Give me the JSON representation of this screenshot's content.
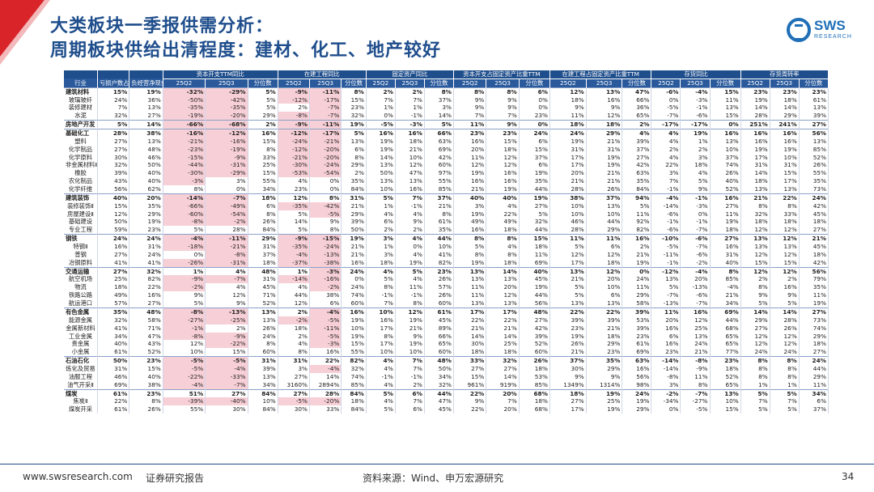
{
  "title": {
    "line1": "大类板块一季报供需分析：",
    "line2": "周期板块供给出清程度：建材、化工、地产较好"
  },
  "logo": {
    "brand": "SWS",
    "sub": "RESEARCH"
  },
  "table": {
    "groups": [
      "",
      "",
      "",
      "资本开支TTM同比",
      "在建工程同比",
      "固定资产同比",
      "资本开支占固定资产比重TTM",
      "在建工程占固定资产比重TTM",
      "存货同比",
      "存货周转率"
    ],
    "headers": [
      "行业",
      "亏损户数占比",
      "负经营净现金流户数占比",
      "25Q2",
      "25Q3",
      "分位数",
      "25Q2",
      "25Q3",
      "分位数",
      "25Q2",
      "25Q3",
      "分位数",
      "25Q2",
      "25Q3",
      "分位数",
      "25Q2",
      "25Q3",
      "分位数",
      "25Q2",
      "25Q3",
      "分位数",
      "25Q2",
      "25Q3",
      "分位数"
    ],
    "rows": [
      {
        "t": "m",
        "c": [
          "建筑材料",
          "15%",
          "19%",
          "-32%",
          "-29%",
          "5%",
          "-9%",
          "-11%",
          "8%",
          "2%",
          "2%",
          "8%",
          "8%",
          "8%",
          "6%",
          "12%",
          "13%",
          "47%",
          "-6%",
          "-4%",
          "15%",
          "23%",
          "23%",
          "23%"
        ]
      },
      {
        "t": "s",
        "c": [
          "玻璃玻纤",
          "24%",
          "36%",
          "-50%",
          "-42%",
          "5%",
          "-12%",
          "-17%",
          "15%",
          "7%",
          "7%",
          "37%",
          "9%",
          "9%",
          "0%",
          "18%",
          "16%",
          "66%",
          "0%",
          "-3%",
          "11%",
          "19%",
          "18%",
          "61%"
        ]
      },
      {
        "t": "s",
        "c": [
          "装修建材",
          "7%",
          "13%",
          "-35%",
          "-35%",
          "5%",
          "2%",
          "-7%",
          "23%",
          "1%",
          "1%",
          "3%",
          "9%",
          "9%",
          "0%",
          "9%",
          "9%",
          "36%",
          "-5%",
          "-1%",
          "13%",
          "14%",
          "14%",
          "13%"
        ]
      },
      {
        "t": "s",
        "c": [
          "水泥",
          "32%",
          "27%",
          "-19%",
          "-20%",
          "29%",
          "-8%",
          "-7%",
          "32%",
          "0%",
          "-1%",
          "14%",
          "7%",
          "7%",
          "23%",
          "11%",
          "12%",
          "65%",
          "-7%",
          "-6%",
          "15%",
          "28%",
          "29%",
          "39%"
        ]
      },
      {
        "t": "m",
        "c": [
          "房地产开发",
          "5%",
          "14%",
          "-66%",
          "-68%",
          "2%",
          "-9%",
          "-11%",
          "19%",
          "-5%",
          "-3%",
          "5%",
          "11%",
          "9%",
          "0%",
          "18%",
          "18%",
          "2%",
          "-17%",
          "-17%",
          "0%",
          "251%",
          "241%",
          "27%"
        ]
      },
      {
        "t": "m",
        "c": [
          "基础化工",
          "28%",
          "38%",
          "-16%",
          "-12%",
          "16%",
          "-12%",
          "-17%",
          "5%",
          "16%",
          "16%",
          "66%",
          "23%",
          "23%",
          "24%",
          "24%",
          "29%",
          "4%",
          "4%",
          "19%",
          "16%",
          "16%",
          "16%",
          "56%"
        ]
      },
      {
        "t": "s",
        "c": [
          "塑料",
          "27%",
          "13%",
          "-21%",
          "-16%",
          "15%",
          "-24%",
          "-21%",
          "13%",
          "19%",
          "18%",
          "63%",
          "16%",
          "15%",
          "6%",
          "19%",
          "21%",
          "39%",
          "4%",
          "1%",
          "13%",
          "16%",
          "16%",
          "13%"
        ]
      },
      {
        "t": "s",
        "c": [
          "化学制品",
          "27%",
          "48%",
          "-23%",
          "-19%",
          "8%",
          "-12%",
          "-20%",
          "6%",
          "19%",
          "21%",
          "69%",
          "20%",
          "18%",
          "15%",
          "31%",
          "31%",
          "37%",
          "2%",
          "2%",
          "10%",
          "19%",
          "19%",
          "85%"
        ]
      },
      {
        "t": "s",
        "c": [
          "化学原料",
          "30%",
          "46%",
          "-15%",
          "-9%",
          "33%",
          "-21%",
          "-20%",
          "8%",
          "14%",
          "10%",
          "42%",
          "11%",
          "12%",
          "37%",
          "17%",
          "19%",
          "27%",
          "4%",
          "3%",
          "37%",
          "17%",
          "10%",
          "52%"
        ]
      },
      {
        "t": "s",
        "c": [
          "非金属材料Ⅱ",
          "32%",
          "50%",
          "-44%",
          "-31%",
          "25%",
          "-30%",
          "-24%",
          "29%",
          "13%",
          "12%",
          "60%",
          "12%",
          "12%",
          "6%",
          "17%",
          "19%",
          "42%",
          "22%",
          "18%",
          "74%",
          "31%",
          "31%",
          "26%"
        ]
      },
      {
        "t": "s",
        "c": [
          "橡胶",
          "39%",
          "40%",
          "-30%",
          "-29%",
          "15%",
          "-53%",
          "-54%",
          "2%",
          "50%",
          "47%",
          "97%",
          "19%",
          "16%",
          "19%",
          "20%",
          "21%",
          "63%",
          "3%",
          "4%",
          "26%",
          "14%",
          "15%",
          "55%"
        ]
      },
      {
        "t": "s",
        "c": [
          "农化制品",
          "43%",
          "40%",
          "-3%",
          "3%",
          "55%",
          "4%",
          "0%",
          "35%",
          "13%",
          "13%",
          "55%",
          "16%",
          "16%",
          "35%",
          "21%",
          "21%",
          "35%",
          "7%",
          "5%",
          "40%",
          "18%",
          "17%",
          "35%"
        ]
      },
      {
        "t": "s",
        "c": [
          "化学纤维",
          "56%",
          "62%",
          "8%",
          "0%",
          "34%",
          "23%",
          "0%",
          "84%",
          "10%",
          "16%",
          "85%",
          "21%",
          "19%",
          "44%",
          "28%",
          "26%",
          "84%",
          "-1%",
          "9%",
          "52%",
          "13%",
          "13%",
          "73%"
        ]
      },
      {
        "t": "m",
        "c": [
          "建筑装饰",
          "40%",
          "20%",
          "-14%",
          "-7%",
          "18%",
          "12%",
          "8%",
          "31%",
          "5%",
          "7%",
          "37%",
          "40%",
          "40%",
          "19%",
          "38%",
          "37%",
          "94%",
          "-4%",
          "-1%",
          "16%",
          "21%",
          "22%",
          "24%"
        ]
      },
      {
        "t": "s",
        "c": [
          "装修装饰Ⅱ",
          "15%",
          "35%",
          "-66%",
          "-49%",
          "6%",
          "-35%",
          "-42%",
          "21%",
          "1%",
          "-1%",
          "21%",
          "3%",
          "4%",
          "27%",
          "10%",
          "13%",
          "5%",
          "-14%",
          "-3%",
          "27%",
          "8%",
          "8%",
          "42%"
        ]
      },
      {
        "t": "s",
        "c": [
          "房屋建设Ⅱ",
          "12%",
          "29%",
          "-60%",
          "-54%",
          "8%",
          "5%",
          "-5%",
          "29%",
          "4%",
          "4%",
          "8%",
          "19%",
          "22%",
          "5%",
          "10%",
          "10%",
          "11%",
          "-6%",
          "0%",
          "11%",
          "32%",
          "33%",
          "45%"
        ]
      },
      {
        "t": "s",
        "c": [
          "基础建设",
          "50%",
          "19%",
          "-8%",
          "-2%",
          "26%",
          "14%",
          "9%",
          "39%",
          "6%",
          "9%",
          "61%",
          "49%",
          "49%",
          "32%",
          "46%",
          "44%",
          "92%",
          "-1%",
          "-1%",
          "19%",
          "18%",
          "18%",
          "18%"
        ]
      },
      {
        "t": "s",
        "c": [
          "专业工程",
          "59%",
          "23%",
          "5%",
          "28%",
          "84%",
          "5%",
          "8%",
          "50%",
          "2%",
          "2%",
          "35%",
          "16%",
          "18%",
          "44%",
          "28%",
          "29%",
          "82%",
          "-6%",
          "-7%",
          "18%",
          "12%",
          "12%",
          "27%"
        ]
      },
      {
        "t": "m",
        "c": [
          "钢铁",
          "24%",
          "24%",
          "-4%",
          "-11%",
          "29%",
          "-9%",
          "-15%",
          "19%",
          "3%",
          "4%",
          "44%",
          "8%",
          "8%",
          "15%",
          "11%",
          "11%",
          "16%",
          "-10%",
          "-6%",
          "27%",
          "13%",
          "12%",
          "21%"
        ]
      },
      {
        "t": "s",
        "c": [
          "特钢Ⅱ",
          "16%",
          "31%",
          "-18%",
          "-21%",
          "31%",
          "-35%",
          "-24%",
          "21%",
          "1%",
          "0%",
          "10%",
          "5%",
          "4%",
          "18%",
          "5%",
          "6%",
          "2%",
          "-5%",
          "-7%",
          "16%",
          "13%",
          "13%",
          "45%"
        ]
      },
      {
        "t": "s",
        "c": [
          "普钢",
          "27%",
          "24%",
          "0%",
          "-8%",
          "37%",
          "-4%",
          "-13%",
          "21%",
          "3%",
          "4%",
          "41%",
          "8%",
          "8%",
          "11%",
          "12%",
          "12%",
          "21%",
          "-11%",
          "-6%",
          "31%",
          "12%",
          "12%",
          "18%"
        ]
      },
      {
        "t": "s",
        "c": [
          "冶钢原料",
          "41%",
          "41%",
          "-26%",
          "-31%",
          "18%",
          "-37%",
          "-38%",
          "16%",
          "18%",
          "19%",
          "82%",
          "19%",
          "18%",
          "69%",
          "17%",
          "18%",
          "19%",
          "-1%",
          "-2%",
          "40%",
          "15%",
          "15%",
          "42%"
        ]
      },
      {
        "t": "m",
        "c": [
          "交通运输",
          "27%",
          "32%",
          "1%",
          "4%",
          "48%",
          "1%",
          "-3%",
          "24%",
          "4%",
          "5%",
          "23%",
          "13%",
          "14%",
          "40%",
          "13%",
          "12%",
          "0%",
          "-12%",
          "-4%",
          "8%",
          "12%",
          "12%",
          "56%"
        ]
      },
      {
        "t": "s",
        "c": [
          "航空机场",
          "25%",
          "82%",
          "-9%",
          "-7%",
          "31%",
          "-14%",
          "-16%",
          "0%",
          "5%",
          "4%",
          "26%",
          "13%",
          "13%",
          "45%",
          "21%",
          "20%",
          "24%",
          "13%",
          "20%",
          "85%",
          "2%",
          "2%",
          "79%"
        ]
      },
      {
        "t": "s",
        "c": [
          "物流",
          "18%",
          "22%",
          "-2%",
          "4%",
          "45%",
          "4%",
          "-2%",
          "24%",
          "8%",
          "11%",
          "57%",
          "11%",
          "20%",
          "19%",
          "5%",
          "10%",
          "11%",
          "5%",
          "-13%",
          "-4%",
          "8%",
          "16%",
          "35%"
        ]
      },
      {
        "t": "s",
        "c": [
          "铁路公路",
          "49%",
          "16%",
          "9%",
          "12%",
          "71%",
          "44%",
          "38%",
          "74%",
          "-1%",
          "-1%",
          "26%",
          "11%",
          "12%",
          "44%",
          "5%",
          "6%",
          "29%",
          "-7%",
          "-6%",
          "21%",
          "9%",
          "9%",
          "11%"
        ]
      },
      {
        "t": "s",
        "c": [
          "航运港口",
          "57%",
          "27%",
          "5%",
          "9%",
          "52%",
          "12%",
          "6%",
          "60%",
          "7%",
          "8%",
          "60%",
          "13%",
          "13%",
          "56%",
          "13%",
          "13%",
          "58%",
          "-13%",
          "-7%",
          "34%",
          "5%",
          "5%",
          "19%"
        ]
      },
      {
        "t": "m",
        "c": [
          "有色金属",
          "35%",
          "48%",
          "-8%",
          "-13%",
          "13%",
          "2%",
          "-4%",
          "16%",
          "10%",
          "12%",
          "61%",
          "17%",
          "17%",
          "48%",
          "22%",
          "22%",
          "39%",
          "11%",
          "16%",
          "69%",
          "14%",
          "14%",
          "27%"
        ]
      },
      {
        "t": "s",
        "c": [
          "能源金属",
          "32%",
          "58%",
          "-27%",
          "-25%",
          "13%",
          "-2%",
          "-5%",
          "19%",
          "16%",
          "19%",
          "45%",
          "22%",
          "22%",
          "27%",
          "39%",
          "39%",
          "53%",
          "20%",
          "12%",
          "44%",
          "29%",
          "28%",
          "73%"
        ]
      },
      {
        "t": "s",
        "c": [
          "金属新材料",
          "41%",
          "71%",
          "-1%",
          "2%",
          "26%",
          "18%",
          "-11%",
          "10%",
          "17%",
          "21%",
          "89%",
          "21%",
          "21%",
          "42%",
          "23%",
          "21%",
          "39%",
          "16%",
          "25%",
          "68%",
          "27%",
          "26%",
          "74%"
        ]
      },
      {
        "t": "s",
        "c": [
          "工业金属",
          "34%",
          "47%",
          "-8%",
          "-9%",
          "24%",
          "2%",
          "-5%",
          "19%",
          "8%",
          "9%",
          "66%",
          "14%",
          "14%",
          "39%",
          "19%",
          "18%",
          "23%",
          "6%",
          "13%",
          "65%",
          "12%",
          "12%",
          "29%"
        ]
      },
      {
        "t": "s",
        "c": [
          "贵金属",
          "40%",
          "43%",
          "12%",
          "-22%",
          "8%",
          "4%",
          "-3%",
          "15%",
          "17%",
          "19%",
          "65%",
          "30%",
          "25%",
          "52%",
          "26%",
          "29%",
          "61%",
          "16%",
          "24%",
          "65%",
          "12%",
          "12%",
          "18%"
        ]
      },
      {
        "t": "s",
        "c": [
          "小金属",
          "61%",
          "52%",
          "10%",
          "15%",
          "60%",
          "8%",
          "16%",
          "55%",
          "10%",
          "10%",
          "60%",
          "18%",
          "18%",
          "60%",
          "21%",
          "23%",
          "69%",
          "23%",
          "21%",
          "77%",
          "24%",
          "24%",
          "27%"
        ]
      },
      {
        "t": "m",
        "c": [
          "石油石化",
          "50%",
          "23%",
          "-5%",
          "-5%",
          "31%",
          "31%",
          "22%",
          "82%",
          "4%",
          "7%",
          "48%",
          "33%",
          "32%",
          "26%",
          "37%",
          "35%",
          "63%",
          "-14%",
          "-8%",
          "23%",
          "8%",
          "8%",
          "24%"
        ]
      },
      {
        "t": "s",
        "c": [
          "炼化及贸易",
          "31%",
          "15%",
          "-5%",
          "-4%",
          "39%",
          "3%",
          "-4%",
          "32%",
          "4%",
          "7%",
          "50%",
          "27%",
          "27%",
          "18%",
          "30%",
          "29%",
          "16%",
          "-14%",
          "-9%",
          "18%",
          "8%",
          "8%",
          "44%"
        ]
      },
      {
        "t": "s",
        "c": [
          "油服工程",
          "46%",
          "40%",
          "-22%",
          "-33%",
          "13%",
          "27%",
          "14%",
          "74%",
          "-1%",
          "-1%",
          "34%",
          "15%",
          "14%",
          "53%",
          "9%",
          "9%",
          "56%",
          "-8%",
          "11%",
          "52%",
          "8%",
          "8%",
          "29%"
        ]
      },
      {
        "t": "s",
        "c": [
          "油气开采Ⅱ",
          "69%",
          "38%",
          "-4%",
          "-7%",
          "34%",
          "3160%",
          "2894%",
          "85%",
          "4%",
          "2%",
          "32%",
          "961%",
          "919%",
          "85%",
          "1349%",
          "1314%",
          "98%",
          "3%",
          "8%",
          "65%",
          "1%",
          "1%",
          "11%"
        ]
      },
      {
        "t": "m",
        "c": [
          "煤炭",
          "61%",
          "23%",
          "51%",
          "27%",
          "84%",
          "27%",
          "28%",
          "84%",
          "5%",
          "6%",
          "44%",
          "22%",
          "20%",
          "68%",
          "18%",
          "19%",
          "24%",
          "-2%",
          "-7%",
          "13%",
          "5%",
          "5%",
          "34%"
        ]
      },
      {
        "t": "s",
        "c": [
          "焦炭Ⅱ",
          "22%",
          "8%",
          "-39%",
          "-40%",
          "10%",
          "-5%",
          "-20%",
          "18%",
          "4%",
          "7%",
          "47%",
          "9%",
          "7%",
          "18%",
          "27%",
          "25%",
          "19%",
          "-34%",
          "-27%",
          "10%",
          "7%",
          "7%",
          "6%"
        ]
      },
      {
        "t": "s",
        "c": [
          "煤炭开采",
          "61%",
          "26%",
          "55%",
          "30%",
          "84%",
          "30%",
          "33%",
          "84%",
          "5%",
          "6%",
          "45%",
          "22%",
          "20%",
          "68%",
          "17%",
          "19%",
          "29%",
          "0%",
          "-5%",
          "15%",
          "5%",
          "5%",
          "37%"
        ]
      }
    ]
  },
  "footer": {
    "url": "www.swsresearch.com",
    "label": "证券研究报告",
    "source": "资料来源：Wind、申万宏源研究",
    "page": "34"
  },
  "colors": {
    "brand": "#1f4e8c",
    "accent": "#d9252a",
    "negative_bg": "#f7cfd6"
  }
}
